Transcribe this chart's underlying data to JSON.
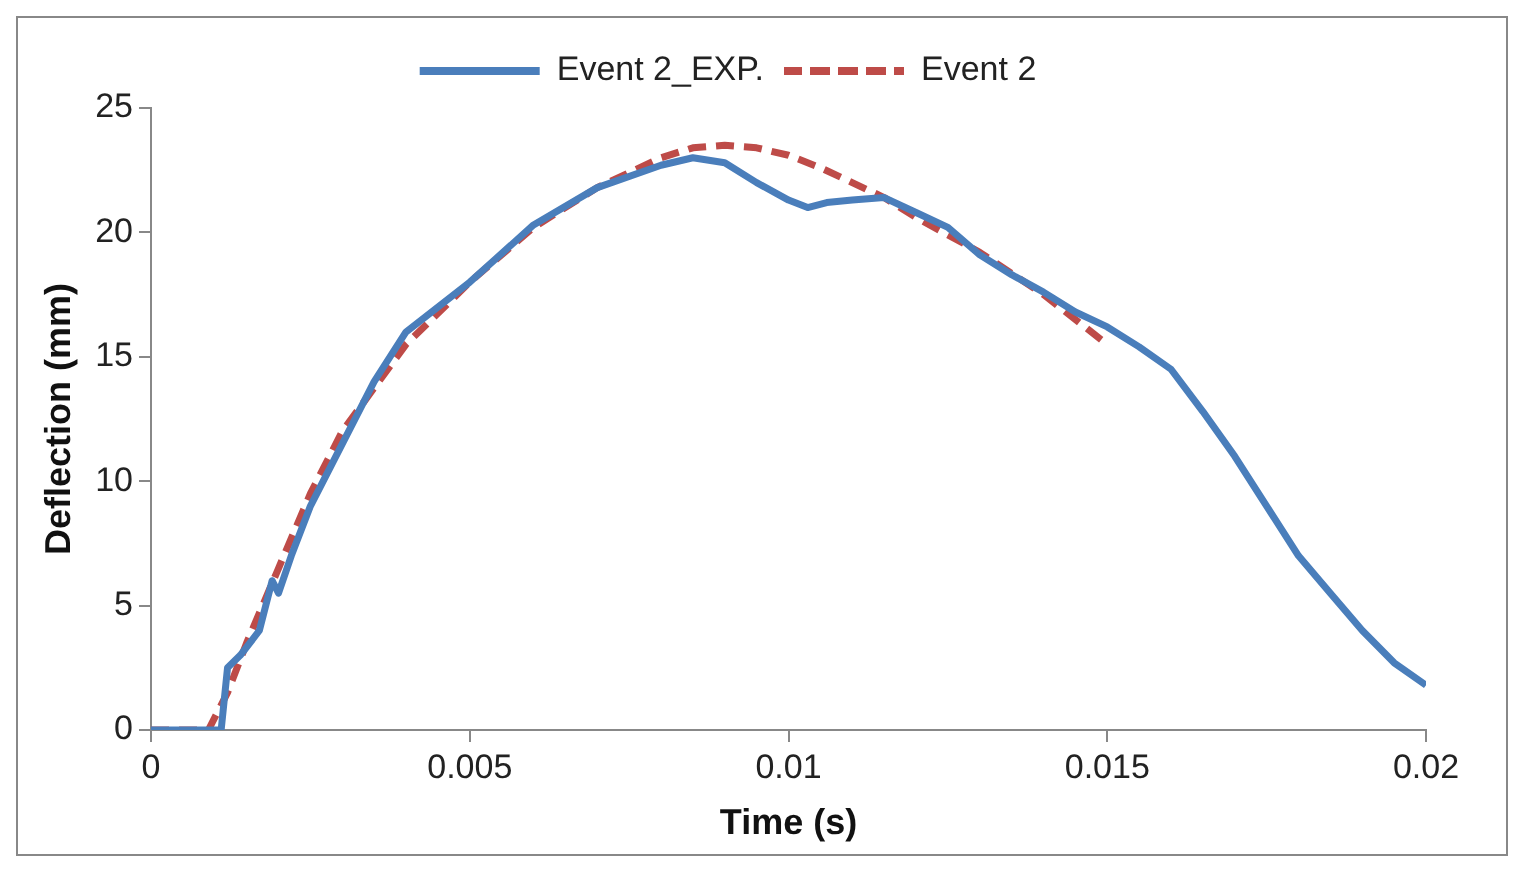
{
  "chart_data": {
    "type": "line",
    "xlabel": "Time (s)",
    "ylabel": "Deflection (mm)",
    "legend": "top",
    "grid": false,
    "marker": "none",
    "xlim": [
      0,
      0.02
    ],
    "xticks": [
      0,
      0.005,
      0.01,
      0.015,
      0.02
    ],
    "ylim": [
      0,
      25
    ],
    "yticks": [
      0,
      5,
      10,
      15,
      20,
      25
    ],
    "series": [
      {
        "name": "Event 2_EXP.",
        "color": "#4a7ebb",
        "line_style": "solid",
        "x": [
          0,
          0.0011,
          0.0012,
          0.0014,
          0.0017,
          0.0019,
          0.002,
          0.0022,
          0.0025,
          0.003,
          0.0035,
          0.004,
          0.005,
          0.006,
          0.007,
          0.008,
          0.0085,
          0.009,
          0.0095,
          0.01,
          0.0103,
          0.0106,
          0.011,
          0.0115,
          0.012,
          0.0125,
          0.013,
          0.0135,
          0.014,
          0.0145,
          0.015,
          0.0155,
          0.016,
          0.0165,
          0.017,
          0.0175,
          0.018,
          0.0185,
          0.019,
          0.0195,
          0.02
        ],
        "values": [
          0,
          0,
          2.5,
          3,
          4,
          6,
          5.5,
          7,
          9,
          11.5,
          14,
          16,
          18,
          20.3,
          21.8,
          22.7,
          23,
          22.8,
          22,
          21.3,
          21,
          21.2,
          21.3,
          21.4,
          20.8,
          20.2,
          19.1,
          18.3,
          17.6,
          16.8,
          16.2,
          15.4,
          14.5,
          12.8,
          11,
          9,
          7,
          5.5,
          4,
          2.7,
          1.8
        ]
      },
      {
        "name": "Event 2",
        "color": "#be4b48",
        "line_style": "dashed",
        "x": [
          0,
          0.0009,
          0.0012,
          0.0015,
          0.002,
          0.0025,
          0.003,
          0.004,
          0.005,
          0.006,
          0.007,
          0.008,
          0.0085,
          0.009,
          0.0095,
          0.01,
          0.0105,
          0.011,
          0.0115,
          0.012,
          0.013,
          0.014,
          0.015
        ],
        "values": [
          0,
          0,
          1.5,
          3.5,
          6.5,
          9.5,
          12,
          15.5,
          18,
          20.2,
          21.8,
          23,
          23.4,
          23.5,
          23.4,
          23.1,
          22.6,
          22,
          21.4,
          20.6,
          19.2,
          17.5,
          15.5
        ]
      }
    ]
  }
}
